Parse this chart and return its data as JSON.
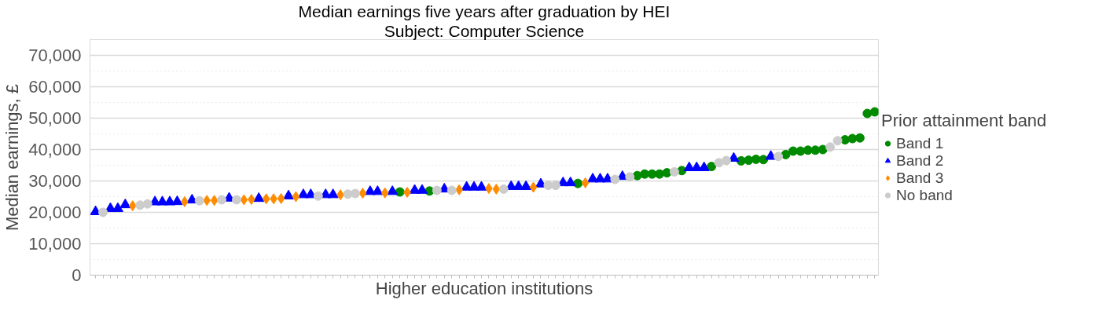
{
  "chart_data": {
    "type": "scatter",
    "title": "Median earnings five years after graduation by HEI",
    "subtitle": "Subject: Computer Science",
    "xlabel": "Higher education institutions",
    "ylabel": "Median earnings, £",
    "legend_title": "Prior attainment band",
    "categories": [
      null,
      null,
      null,
      null,
      null,
      null,
      null,
      null,
      null,
      null,
      null,
      null,
      null,
      null,
      null,
      null,
      null,
      null,
      null,
      null,
      null,
      null,
      null,
      null,
      null,
      null,
      null,
      null,
      null,
      null,
      null,
      null,
      null,
      null,
      null,
      null,
      null,
      null,
      null,
      null,
      null,
      null,
      null,
      null,
      null,
      null,
      null,
      null,
      null,
      null,
      null,
      null,
      null,
      null,
      null,
      null,
      null,
      null,
      null,
      null,
      null,
      null,
      null,
      null,
      null,
      null,
      null,
      null,
      null,
      null,
      null,
      null,
      null,
      null,
      null,
      null,
      null,
      null,
      null,
      null,
      null,
      null,
      null,
      null,
      null,
      null,
      null,
      null,
      null,
      null,
      null,
      null,
      null,
      null,
      null,
      null,
      null,
      null,
      null,
      null,
      null,
      null,
      null,
      null,
      null,
      null
    ],
    "series": [
      {
        "name": "Band 1",
        "color": "#008a00",
        "marker": "circle",
        "values": [
          null,
          null,
          null,
          null,
          null,
          null,
          null,
          null,
          null,
          null,
          null,
          null,
          null,
          null,
          null,
          null,
          null,
          null,
          null,
          null,
          null,
          null,
          null,
          null,
          null,
          null,
          null,
          null,
          null,
          null,
          null,
          null,
          null,
          null,
          null,
          null,
          null,
          null,
          null,
          null,
          null,
          26500,
          null,
          null,
          null,
          26800,
          null,
          null,
          null,
          null,
          null,
          null,
          null,
          null,
          null,
          null,
          null,
          null,
          null,
          null,
          null,
          null,
          null,
          null,
          null,
          29200,
          null,
          null,
          null,
          null,
          null,
          null,
          null,
          31700,
          32200,
          32200,
          32200,
          32600,
          null,
          33300,
          null,
          null,
          null,
          34600,
          null,
          null,
          null,
          36400,
          36600,
          36900,
          36800,
          null,
          null,
          38400,
          39500,
          39500,
          39800,
          39800,
          40000,
          null,
          null,
          43100,
          43500,
          43700,
          51500,
          52000
        ]
      },
      {
        "name": "Band 2",
        "color": "#0000ff",
        "marker": "triangle",
        "values": [
          20200,
          null,
          21200,
          21200,
          22400,
          null,
          null,
          null,
          23300,
          23300,
          23300,
          23400,
          null,
          23900,
          null,
          null,
          null,
          null,
          24500,
          null,
          null,
          null,
          24400,
          null,
          null,
          null,
          25200,
          null,
          25600,
          25600,
          null,
          25600,
          25600,
          null,
          null,
          null,
          null,
          26600,
          26600,
          null,
          26600,
          null,
          null,
          27000,
          27000,
          null,
          null,
          27400,
          null,
          null,
          28000,
          28000,
          28000,
          null,
          null,
          null,
          28200,
          28200,
          28200,
          null,
          29000,
          null,
          null,
          29400,
          29400,
          null,
          null,
          30600,
          30600,
          30600,
          null,
          31400,
          null,
          null,
          null,
          null,
          null,
          null,
          null,
          null,
          34200,
          34200,
          34200,
          null,
          null,
          null,
          37200,
          null,
          null,
          null,
          null,
          37800,
          null,
          null,
          null,
          null,
          null,
          null,
          null,
          null,
          null,
          null,
          null,
          null,
          null,
          null
        ]
      },
      {
        "name": "Band 3",
        "color": "#ff8c00",
        "marker": "diamond",
        "values": [
          null,
          null,
          null,
          null,
          null,
          22100,
          null,
          null,
          null,
          null,
          null,
          null,
          23400,
          null,
          null,
          23800,
          23800,
          null,
          null,
          null,
          24000,
          24100,
          null,
          24300,
          24300,
          24400,
          null,
          25000,
          null,
          null,
          null,
          null,
          null,
          25600,
          null,
          null,
          26100,
          null,
          null,
          26200,
          null,
          null,
          26400,
          null,
          null,
          null,
          null,
          null,
          null,
          27200,
          null,
          null,
          null,
          27600,
          27400,
          null,
          null,
          null,
          null,
          28000,
          null,
          null,
          null,
          null,
          null,
          null,
          29400,
          null,
          null,
          null,
          null,
          null,
          null,
          null,
          null,
          null,
          null,
          null,
          null,
          null,
          null,
          null,
          null,
          null,
          null,
          null,
          null,
          null,
          null,
          null,
          null,
          null,
          null,
          null,
          null,
          null,
          null,
          null,
          null,
          null,
          null,
          null,
          null,
          null,
          null,
          null
        ]
      },
      {
        "name": "No band",
        "color": "#cccccc",
        "marker": "circle",
        "values": [
          null,
          20000,
          null,
          null,
          null,
          null,
          22300,
          22700,
          null,
          null,
          null,
          null,
          null,
          null,
          23700,
          null,
          null,
          24000,
          null,
          24000,
          null,
          null,
          null,
          null,
          null,
          null,
          null,
          null,
          null,
          null,
          25200,
          null,
          null,
          null,
          25800,
          26000,
          null,
          null,
          null,
          null,
          null,
          null,
          null,
          null,
          null,
          null,
          27000,
          null,
          27000,
          null,
          null,
          null,
          null,
          null,
          null,
          27400,
          null,
          null,
          null,
          null,
          null,
          28600,
          28600,
          null,
          null,
          null,
          null,
          null,
          null,
          null,
          30500,
          null,
          31300,
          null,
          null,
          null,
          null,
          null,
          32900,
          null,
          null,
          null,
          null,
          null,
          35800,
          36500,
          null,
          null,
          null,
          null,
          null,
          null,
          37800,
          null,
          null,
          null,
          null,
          null,
          null,
          40800,
          42800,
          null,
          null,
          null,
          null,
          null
        ]
      }
    ],
    "ylim": [
      0,
      75000
    ],
    "yticks": [
      {
        "value": 0,
        "label": "0"
      },
      {
        "value": 10000,
        "label": "10,000"
      },
      {
        "value": 20000,
        "label": "20,000"
      },
      {
        "value": 30000,
        "label": "30,000"
      },
      {
        "value": 40000,
        "label": "40,000"
      },
      {
        "value": 50000,
        "label": "50,000"
      },
      {
        "value": 60000,
        "label": "60,000"
      },
      {
        "value": 70000,
        "label": "70,000"
      }
    ],
    "grid": "y",
    "legend": "right"
  }
}
